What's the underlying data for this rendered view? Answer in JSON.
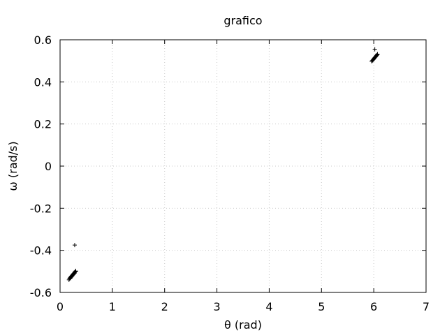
{
  "chart_data": {
    "type": "scatter",
    "title": "grafico",
    "xlabel": "θ (rad)",
    "ylabel": "ω (rad/s)",
    "xlim": [
      0,
      7
    ],
    "ylim": [
      -0.6,
      0.6
    ],
    "xticks": [
      "0",
      "1",
      "2",
      "3",
      "4",
      "5",
      "6",
      "7"
    ],
    "yticks": [
      "-0.6",
      "-0.4",
      "-0.2",
      "0",
      "0.2",
      "0.4",
      "0.6"
    ],
    "xtick_values": [
      0,
      1,
      2,
      3,
      4,
      5,
      6,
      7
    ],
    "ytick_values": [
      -0.6,
      -0.4,
      -0.2,
      0,
      0.2,
      0.4,
      0.6
    ],
    "grid": true,
    "marker": "+",
    "color": "#000000",
    "series": [
      {
        "x": [
          0.28,
          0.18,
          0.19,
          0.2,
          0.21,
          0.22,
          0.23,
          0.24,
          0.25,
          0.26,
          0.27,
          0.28,
          0.29,
          0.3,
          0.17,
          0.2,
          0.22,
          0.24,
          0.26,
          0.28,
          0.3,
          6.02,
          5.97,
          5.98,
          5.99,
          6.0,
          6.01,
          6.02,
          6.03,
          6.04,
          6.05,
          6.06,
          6.07,
          5.96,
          5.99,
          6.01,
          6.03,
          6.05,
          6.07
        ],
        "y": [
          -0.375,
          -0.535,
          -0.531,
          -0.528,
          -0.525,
          -0.522,
          -0.519,
          -0.516,
          -0.513,
          -0.51,
          -0.507,
          -0.504,
          -0.501,
          -0.498,
          -0.54,
          -0.532,
          -0.526,
          -0.52,
          -0.514,
          -0.508,
          -0.502,
          0.555,
          0.5,
          0.503,
          0.506,
          0.509,
          0.512,
          0.515,
          0.518,
          0.521,
          0.524,
          0.527,
          0.53,
          0.498,
          0.507,
          0.513,
          0.519,
          0.525,
          0.532
        ]
      }
    ]
  }
}
